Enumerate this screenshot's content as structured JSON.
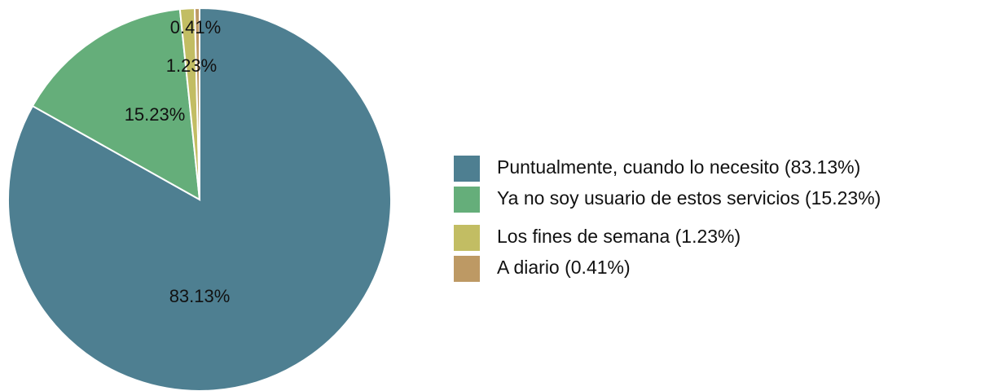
{
  "chart_data": {
    "type": "pie",
    "categories": [
      "Puntualmente, cuando lo necesito (83.13%)",
      "Ya no soy usuario de estos servicios (15.23%)",
      "Los fines de semana (1.23%)",
      "A diario (0.41%)"
    ],
    "values": [
      83.13,
      15.23,
      1.23,
      0.41
    ],
    "value_labels": [
      "83.13%",
      "15.23%",
      "1.23%",
      "0.41%"
    ],
    "colors": [
      "#4e7f91",
      "#65ae7a",
      "#c2bd63",
      "#bd9964"
    ],
    "legend": "right"
  }
}
